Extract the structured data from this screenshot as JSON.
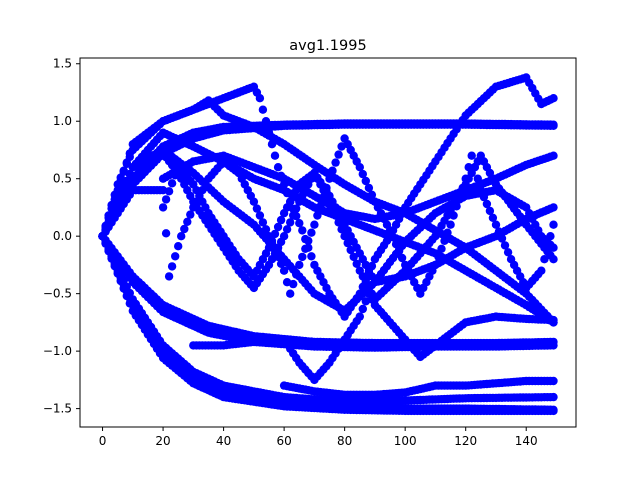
{
  "chart_data": {
    "type": "scatter",
    "title": "avg1.1995",
    "xlabel": "",
    "ylabel": "",
    "xlim": [
      -7.45,
      156.45
    ],
    "ylim": [
      -1.66,
      1.55
    ],
    "xticks": [
      0,
      20,
      40,
      60,
      80,
      100,
      120,
      140
    ],
    "yticks": [
      -1.5,
      -1.0,
      -0.5,
      0.0,
      0.5,
      1.0,
      1.5
    ],
    "xtick_labels": [
      "0",
      "20",
      "40",
      "60",
      "80",
      "100",
      "120",
      "140"
    ],
    "ytick_labels": [
      "−1.5",
      "−1.0",
      "−0.5",
      "0.0",
      "0.5",
      "1.0",
      "1.5"
    ],
    "grid": false,
    "marker_color": "#0000ff",
    "series": [
      {
        "points": [
          [
            0,
            0
          ],
          [
            10,
            0.45
          ],
          [
            20,
            0.72
          ],
          [
            30,
            0.85
          ],
          [
            40,
            0.92
          ],
          [
            60,
            0.96
          ],
          [
            80,
            0.97
          ],
          [
            100,
            0.97
          ],
          [
            120,
            0.97
          ],
          [
            149,
            0.96
          ]
        ]
      },
      {
        "points": [
          [
            0,
            0
          ],
          [
            10,
            0.5
          ],
          [
            20,
            0.78
          ],
          [
            30,
            0.9
          ],
          [
            40,
            0.95
          ],
          [
            60,
            0.97
          ],
          [
            80,
            0.98
          ],
          [
            100,
            0.98
          ],
          [
            120,
            0.98
          ],
          [
            149,
            0.97
          ]
        ]
      },
      {
        "points": [
          [
            0,
            0
          ],
          [
            10,
            -0.35
          ],
          [
            20,
            -0.6
          ],
          [
            35,
            -0.78
          ],
          [
            50,
            -0.87
          ],
          [
            70,
            -0.92
          ],
          [
            90,
            -0.93
          ],
          [
            110,
            -0.93
          ],
          [
            130,
            -0.93
          ],
          [
            149,
            -0.92
          ]
        ]
      },
      {
        "points": [
          [
            0,
            0
          ],
          [
            10,
            -0.4
          ],
          [
            20,
            -0.66
          ],
          [
            35,
            -0.84
          ],
          [
            50,
            -0.92
          ],
          [
            70,
            -0.96
          ],
          [
            90,
            -0.97
          ],
          [
            110,
            -0.96
          ],
          [
            130,
            -0.96
          ],
          [
            149,
            -0.95
          ]
        ]
      },
      {
        "points": [
          [
            0,
            0
          ],
          [
            10,
            -0.6
          ],
          [
            20,
            -1.0
          ],
          [
            30,
            -1.22
          ],
          [
            40,
            -1.34
          ],
          [
            60,
            -1.44
          ],
          [
            80,
            -1.48
          ],
          [
            100,
            -1.5
          ],
          [
            120,
            -1.5
          ],
          [
            149,
            -1.51
          ]
        ]
      },
      {
        "points": [
          [
            0,
            0
          ],
          [
            10,
            -0.65
          ],
          [
            20,
            -1.06
          ],
          [
            30,
            -1.28
          ],
          [
            40,
            -1.4
          ],
          [
            60,
            -1.48
          ],
          [
            80,
            -1.51
          ],
          [
            100,
            -1.52
          ],
          [
            120,
            -1.52
          ],
          [
            149,
            -1.52
          ]
        ]
      },
      {
        "points": [
          [
            0,
            0
          ],
          [
            10,
            -0.55
          ],
          [
            20,
            -0.95
          ],
          [
            30,
            -1.18
          ],
          [
            40,
            -1.3
          ],
          [
            60,
            -1.4
          ],
          [
            80,
            -1.44
          ],
          [
            100,
            -1.43
          ],
          [
            110,
            -1.42
          ],
          [
            120,
            -1.41
          ],
          [
            149,
            -1.4
          ]
        ]
      },
      {
        "points": [
          [
            0,
            0
          ],
          [
            5,
            0.45
          ],
          [
            10,
            0.75
          ],
          [
            20,
            1.0
          ],
          [
            30,
            1.1
          ],
          [
            35,
            1.18
          ],
          [
            40,
            1.05
          ],
          [
            50,
            0.95
          ],
          [
            60,
            0.8
          ],
          [
            70,
            0.62
          ],
          [
            80,
            0.45
          ],
          [
            90,
            0.3
          ],
          [
            100,
            0.2
          ],
          [
            110,
            0.05
          ],
          [
            120,
            -0.1
          ],
          [
            130,
            -0.3
          ],
          [
            140,
            -0.5
          ],
          [
            149,
            -0.75
          ]
        ]
      },
      {
        "points": [
          [
            0,
            0
          ],
          [
            10,
            0.8
          ],
          [
            20,
            1.0
          ],
          [
            30,
            1.1
          ],
          [
            40,
            1.2
          ],
          [
            50,
            1.3
          ],
          [
            52,
            1.2
          ],
          [
            55,
            0.9
          ],
          [
            58,
            0.6
          ],
          [
            62,
            0.3
          ],
          [
            66,
            0.05
          ],
          [
            70,
            -0.25
          ],
          [
            75,
            -0.5
          ],
          [
            80,
            -0.7
          ],
          [
            85,
            -0.5
          ],
          [
            90,
            -0.2
          ],
          [
            95,
            0.0
          ],
          [
            100,
            0.25
          ],
          [
            110,
            0.65
          ],
          [
            120,
            1.05
          ],
          [
            130,
            1.3
          ],
          [
            140,
            1.38
          ],
          [
            145,
            1.15
          ],
          [
            149,
            1.2
          ]
        ]
      },
      {
        "points": [
          [
            0,
            0
          ],
          [
            10,
            0.6
          ],
          [
            20,
            0.9
          ],
          [
            30,
            0.78
          ],
          [
            40,
            0.65
          ],
          [
            50,
            0.5
          ],
          [
            60,
            0.4
          ],
          [
            70,
            0.25
          ],
          [
            80,
            0.15
          ],
          [
            90,
            0.05
          ],
          [
            100,
            -0.05
          ],
          [
            110,
            -0.15
          ],
          [
            120,
            -0.3
          ],
          [
            130,
            -0.45
          ],
          [
            140,
            -0.6
          ],
          [
            149,
            -0.75
          ]
        ]
      },
      {
        "points": [
          [
            0,
            0
          ],
          [
            10,
            0.5
          ],
          [
            20,
            0.72
          ],
          [
            25,
            0.55
          ],
          [
            30,
            0.3
          ],
          [
            35,
            0.1
          ],
          [
            40,
            -0.1
          ],
          [
            45,
            -0.3
          ],
          [
            50,
            -0.45
          ],
          [
            55,
            -0.25
          ],
          [
            60,
            0.0
          ],
          [
            65,
            0.3
          ],
          [
            70,
            0.55
          ],
          [
            75,
            0.3
          ],
          [
            80,
            0.0
          ],
          [
            85,
            -0.3
          ],
          [
            90,
            -0.55
          ],
          [
            100,
            -0.3
          ],
          [
            110,
            0.0
          ],
          [
            120,
            0.45
          ],
          [
            125,
            0.7
          ],
          [
            130,
            0.45
          ],
          [
            140,
            0.1
          ],
          [
            149,
            -0.2
          ]
        ]
      },
      {
        "points": [
          [
            0,
            0
          ],
          [
            10,
            0.6
          ],
          [
            20,
            0.75
          ],
          [
            30,
            0.55
          ],
          [
            40,
            0.3
          ],
          [
            50,
            0.1
          ],
          [
            60,
            -0.2
          ],
          [
            70,
            -0.5
          ],
          [
            80,
            -0.65
          ],
          [
            90,
            -0.4
          ],
          [
            100,
            -0.05
          ],
          [
            110,
            0.2
          ],
          [
            120,
            0.35
          ],
          [
            130,
            0.4
          ],
          [
            140,
            0.25
          ],
          [
            145,
            0.0
          ],
          [
            149,
            -0.1
          ]
        ]
      },
      {
        "points": [
          [
            0,
            0
          ],
          [
            10,
            0.4
          ],
          [
            20,
            0.4
          ],
          [
            22,
            -0.35
          ],
          [
            26,
            0.0
          ],
          [
            30,
            0.25
          ],
          [
            35,
            0.5
          ],
          [
            40,
            0.65
          ],
          [
            45,
            0.55
          ],
          [
            50,
            0.3
          ],
          [
            55,
            0.0
          ],
          [
            60,
            -0.3
          ],
          [
            62,
            -0.5
          ],
          [
            65,
            -0.25
          ],
          [
            70,
            0.1
          ],
          [
            75,
            0.5
          ],
          [
            80,
            0.85
          ],
          [
            85,
            0.6
          ],
          [
            90,
            0.3
          ],
          [
            95,
            0.05
          ],
          [
            100,
            -0.25
          ],
          [
            105,
            -0.5
          ],
          [
            110,
            -0.25
          ],
          [
            115,
            0.1
          ],
          [
            120,
            0.5
          ],
          [
            122,
            0.7
          ],
          [
            125,
            0.4
          ],
          [
            130,
            0.1
          ],
          [
            135,
            -0.2
          ],
          [
            140,
            -0.45
          ],
          [
            145,
            -0.3
          ],
          [
            149,
            0.1
          ]
        ]
      },
      {
        "points": [
          [
            20,
            0.25
          ],
          [
            25,
            0.6
          ],
          [
            30,
            0.45
          ],
          [
            35,
            0.2
          ],
          [
            40,
            0.0
          ],
          [
            45,
            -0.2
          ],
          [
            50,
            -0.35
          ],
          [
            55,
            -0.1
          ],
          [
            60,
            0.2
          ],
          [
            65,
            0.45
          ],
          [
            70,
            0.55
          ],
          [
            75,
            0.35
          ],
          [
            80,
            0.1
          ],
          [
            85,
            -0.15
          ],
          [
            90,
            -0.4
          ],
          [
            100,
            -0.35
          ],
          [
            110,
            -0.25
          ],
          [
            120,
            -0.1
          ],
          [
            130,
            0.0
          ],
          [
            140,
            0.15
          ],
          [
            149,
            0.25
          ]
        ]
      },
      {
        "points": [
          [
            30,
            -0.95
          ],
          [
            40,
            -0.95
          ],
          [
            50,
            -0.92
          ],
          [
            60,
            -0.9
          ],
          [
            65,
            -1.1
          ],
          [
            70,
            -1.25
          ],
          [
            75,
            -1.1
          ],
          [
            80,
            -0.9
          ],
          [
            85,
            -0.7
          ],
          [
            88,
            -0.5
          ],
          [
            90,
            -0.6
          ],
          [
            95,
            -0.75
          ],
          [
            100,
            -0.9
          ],
          [
            105,
            -1.05
          ],
          [
            110,
            -0.95
          ],
          [
            115,
            -0.85
          ],
          [
            120,
            -0.75
          ],
          [
            130,
            -0.7
          ],
          [
            140,
            -0.72
          ],
          [
            149,
            -0.73
          ]
        ]
      },
      {
        "points": [
          [
            20,
            0.5
          ],
          [
            30,
            0.65
          ],
          [
            40,
            0.7
          ],
          [
            50,
            0.6
          ],
          [
            60,
            0.5
          ],
          [
            70,
            0.35
          ],
          [
            80,
            0.2
          ],
          [
            90,
            0.15
          ],
          [
            100,
            0.2
          ],
          [
            110,
            0.3
          ],
          [
            120,
            0.4
          ],
          [
            130,
            0.5
          ],
          [
            140,
            0.62
          ],
          [
            149,
            0.7
          ]
        ]
      },
      {
        "points": [
          [
            60,
            -1.3
          ],
          [
            70,
            -1.35
          ],
          [
            80,
            -1.38
          ],
          [
            90,
            -1.38
          ],
          [
            100,
            -1.36
          ],
          [
            110,
            -1.3
          ],
          [
            120,
            -1.3
          ],
          [
            130,
            -1.28
          ],
          [
            140,
            -1.26
          ],
          [
            149,
            -1.26
          ]
        ]
      }
    ]
  }
}
